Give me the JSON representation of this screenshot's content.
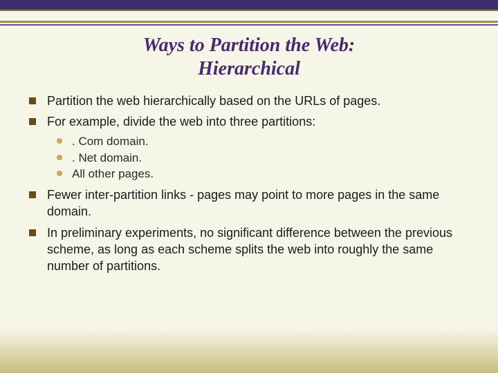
{
  "title": {
    "line1": "Ways to Partition the Web:",
    "line2": "Hierarchical"
  },
  "colors": {
    "title_color": "#4a2a6a",
    "top_stripe": "#3d2e6b",
    "gold_line": "#a08c4a",
    "main_bullet": "#6a4a1a",
    "sub_bullet": "#c8a858",
    "body_text": "#1a1a1a",
    "background_top": "#f5f5e8",
    "background_bottom": "#c8bc80"
  },
  "typography": {
    "title_fontsize": 28,
    "body_fontsize": 18,
    "sub_fontsize": 17,
    "title_font": "Georgia",
    "body_font": "Verdana"
  },
  "bullets": [
    {
      "text": "Partition the web hierarchically based on the URLs of pages."
    },
    {
      "text": "For example, divide the web into three partitions:",
      "sub": [
        ". Com domain.",
        ". Net domain.",
        "All other pages."
      ]
    },
    {
      "text": "Fewer inter-partition links - pages may point to more pages in the same domain."
    },
    {
      "text": "In preliminary experiments, no significant difference between the previous scheme, as long as each scheme splits the web into roughly the same number of partitions."
    }
  ]
}
